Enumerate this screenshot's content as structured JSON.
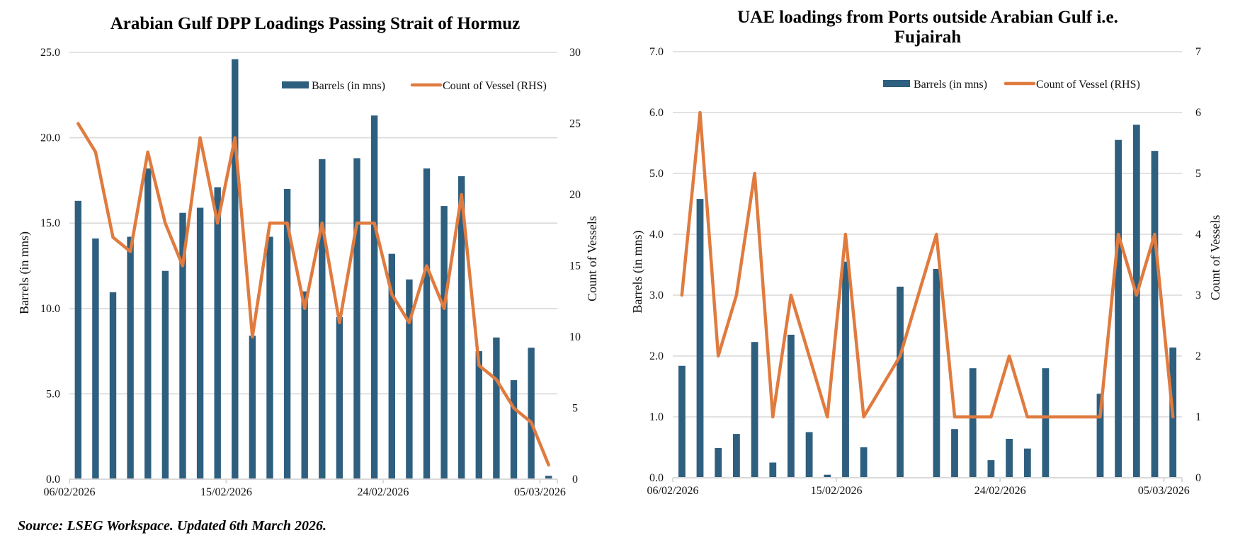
{
  "colors": {
    "bar": "#2E5F7F",
    "line": "#E07B3F",
    "grid": "#D9D9D9"
  },
  "source_note": "Source: LSEG Workspace. Updated 6th March 2026.",
  "chart_data": [
    {
      "type": "bar",
      "combo": "bar+line (dual axis)",
      "title": "Arabian Gulf DPP Loadings Passing Strait of Hormuz",
      "title_lines": [
        "Arabian Gulf DPP Loadings Passing Strait of Hormuz"
      ],
      "ylabel": "Barrels (in mns)",
      "y2label": "Count of Vessels",
      "ylim": [
        0,
        25
      ],
      "y2lim": [
        0,
        30
      ],
      "yticks": [
        "0.0",
        "5.0",
        "10.0",
        "15.0",
        "20.0",
        "25.0"
      ],
      "y2ticks": [
        "0",
        "5",
        "10",
        "15",
        "20",
        "25",
        "30"
      ],
      "xtick_labels": [
        "06/02/2026",
        "15/02/2026",
        "24/02/2026",
        "05/03/2026"
      ],
      "xtick_index": [
        0,
        9,
        18,
        27
      ],
      "grid": true,
      "legend": {
        "placement": "top-right",
        "entries": [
          "Barrels (in mns)",
          "Count of Vessel (RHS)"
        ]
      },
      "categories": [
        "06/02/2026",
        "07/02/2026",
        "08/02/2026",
        "09/02/2026",
        "10/02/2026",
        "11/02/2026",
        "12/02/2026",
        "13/02/2026",
        "14/02/2026",
        "15/02/2026",
        "16/02/2026",
        "17/02/2026",
        "18/02/2026",
        "19/02/2026",
        "20/02/2026",
        "21/02/2026",
        "22/02/2026",
        "23/02/2026",
        "24/02/2026",
        "25/02/2026",
        "26/02/2026",
        "27/02/2026",
        "28/02/2026",
        "01/03/2026",
        "02/03/2026",
        "03/03/2026",
        "04/03/2026",
        "05/03/2026"
      ],
      "series": [
        {
          "name": "Barrels (in mns)",
          "kind": "bar",
          "axis": "left",
          "values": [
            16.3,
            14.1,
            10.95,
            14.2,
            18.2,
            12.2,
            15.6,
            15.9,
            17.1,
            24.6,
            8.4,
            14.2,
            17.0,
            11.0,
            18.75,
            9.5,
            18.8,
            21.3,
            13.2,
            11.7,
            18.2,
            16.0,
            17.75,
            7.5,
            8.3,
            5.8,
            7.7,
            0.2
          ]
        },
        {
          "name": "Count of Vessel (RHS)",
          "kind": "line",
          "axis": "right",
          "values": [
            25,
            23,
            17,
            16,
            23,
            18,
            15,
            24,
            18,
            24,
            10,
            18,
            18,
            12,
            18,
            11,
            18,
            18,
            13,
            11,
            15,
            12,
            20,
            8,
            7,
            5,
            4,
            1
          ]
        }
      ]
    },
    {
      "type": "bar",
      "combo": "bar+line (dual axis)",
      "title": "UAE loadings from Ports outside Arabian Gulf i.e. Fujairah",
      "title_lines": [
        "UAE loadings from Ports outside Arabian Gulf i.e.",
        "Fujairah"
      ],
      "ylabel": "Barrels (in mns)",
      "y2label": "Count of Vessels",
      "ylim": [
        0,
        7
      ],
      "y2lim": [
        0,
        7
      ],
      "yticks": [
        "0.0",
        "1.0",
        "2.0",
        "3.0",
        "4.0",
        "5.0",
        "6.0",
        "7.0"
      ],
      "y2ticks": [
        "0",
        "1",
        "2",
        "3",
        "4",
        "5",
        "6",
        "7"
      ],
      "xtick_labels": [
        "06/02/2026",
        "15/02/2026",
        "24/02/2026",
        "05/03/2026"
      ],
      "xtick_index": [
        0,
        9,
        18,
        27
      ],
      "grid": true,
      "legend": {
        "placement": "top-right",
        "entries": [
          "Barrels (in mns)",
          "Count of Vessel (RHS)"
        ]
      },
      "categories": [
        "06/02/2026",
        "07/02/2026",
        "08/02/2026",
        "09/02/2026",
        "10/02/2026",
        "11/02/2026",
        "12/02/2026",
        "13/02/2026",
        "14/02/2026",
        "15/02/2026",
        "16/02/2026",
        "17/02/2026",
        "18/02/2026",
        "19/02/2026",
        "20/02/2026",
        "21/02/2026",
        "22/02/2026",
        "23/02/2026",
        "24/02/2026",
        "25/02/2026",
        "26/02/2026",
        "27/02/2026",
        "28/02/2026",
        "01/03/2026",
        "02/03/2026",
        "03/03/2026",
        "04/03/2026",
        "05/03/2026"
      ],
      "series": [
        {
          "name": "Barrels (in mns)",
          "kind": "bar",
          "axis": "left",
          "values": [
            1.84,
            4.58,
            0.49,
            0.72,
            2.23,
            0.25,
            2.35,
            0.75,
            0.05,
            3.55,
            0.5,
            0,
            3.14,
            0,
            3.43,
            0.8,
            1.8,
            0.29,
            0.64,
            0.48,
            1.8,
            0,
            0,
            1.38,
            5.55,
            5.8,
            5.37,
            2.14
          ]
        },
        {
          "name": "Count of Vessel (RHS)",
          "kind": "line",
          "axis": "right",
          "values": [
            3,
            6,
            2,
            3,
            5,
            1,
            3,
            2,
            1,
            4,
            1,
            null,
            2,
            null,
            4,
            1,
            1,
            1,
            2,
            1,
            1,
            null,
            null,
            1,
            4,
            3,
            4,
            1
          ]
        }
      ]
    }
  ]
}
